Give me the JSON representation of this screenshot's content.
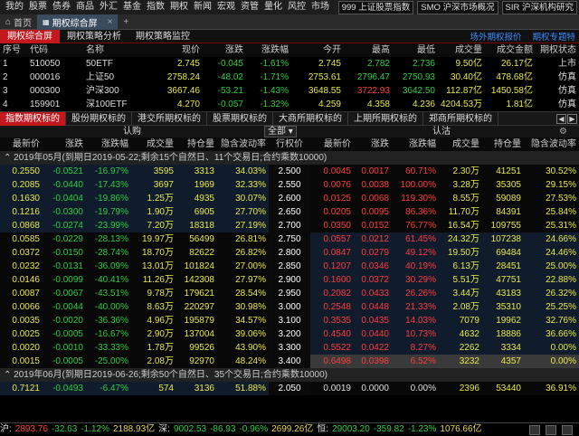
{
  "nav": {
    "items": [
      "我的",
      "股票",
      "债券",
      "商品",
      "外汇",
      "基金",
      "指数",
      "期权",
      "新闻",
      "宏观",
      "资管",
      "量化",
      "风控",
      "市场"
    ],
    "right_buttons": [
      "999 上证股票指数",
      "SMO 沪深市场概况",
      "SIR 沪深机构研究"
    ]
  },
  "tabs": {
    "home": "首页",
    "options": "期权综合屏"
  },
  "subtabs": {
    "items": [
      "期权综合屏",
      "期权策略分析",
      "期权策略监控"
    ],
    "right_links": [
      "场外期权报价",
      "期权专题特"
    ]
  },
  "index_table": {
    "headers": [
      "序号",
      "代码",
      "名称",
      "现价",
      "涨跌",
      "涨跌幅",
      "今开",
      "最高",
      "最低",
      "成交量",
      "成交金额",
      "期权状态"
    ],
    "rows": [
      [
        "1",
        "510050",
        "50ETF",
        "2.745",
        "-0.045",
        "-1.61%",
        "2.745",
        "2.782",
        "2.736",
        "9.50亿",
        "26.17亿",
        "上市"
      ],
      [
        "2",
        "000016",
        "上证50",
        "2758.24",
        "-48.02",
        "-1.71%",
        "2753.61",
        "2796.47",
        "2750.93",
        "30.40亿",
        "478.68亿",
        "仿真"
      ],
      [
        "3",
        "000300",
        "沪深300",
        "3667.46",
        "-53.21",
        "-1.43%",
        "3648.55",
        "3722.93",
        "3642.50",
        "112.87亿",
        "1450.58亿",
        "仿真"
      ],
      [
        "4",
        "159901",
        "深100ETF",
        "4.270",
        "-0.057",
        "-1.32%",
        "4.259",
        "4.358",
        "4.236",
        "4204.53万",
        "1.81亿",
        "仿真"
      ]
    ]
  },
  "categories": [
    "指数期权标的",
    "股份期权标的",
    "港交所期权标的",
    "股票期权标的",
    "大商所期权标的",
    "上期所期权标的",
    "郑商所期权标的"
  ],
  "chain": {
    "call_label": "认购",
    "put_label": "认沽",
    "all_label": "全部",
    "headers_call": [
      "最新价",
      "涨跌",
      "涨跌幅",
      "成交量",
      "持仓量",
      "隐含波动率"
    ],
    "strike_header": "行权价",
    "headers_put": [
      "最新价",
      "涨跌",
      "涨跌幅",
      "成交量",
      "持仓量",
      "隐含波动率"
    ],
    "group1": "2019年05月(到期日2019-05-22;剩余15个自然日、11个交易日;合约乘数10000)",
    "rows": [
      {
        "c": [
          "0.2550",
          "-0.0521",
          "-16.97%",
          "3595",
          "3313",
          "34.03%"
        ],
        "k": "2.500",
        "p": [
          "0.0045",
          "0.0017",
          "60.71%",
          "2.30万",
          "41251",
          "30.52%"
        ]
      },
      {
        "c": [
          "0.2085",
          "-0.0440",
          "-17.43%",
          "3697",
          "1969",
          "32.33%"
        ],
        "k": "2.550",
        "p": [
          "0.0076",
          "0.0038",
          "100.00%",
          "3.28万",
          "35305",
          "29.15%"
        ]
      },
      {
        "c": [
          "0.1630",
          "-0.0404",
          "-19.86%",
          "1.25万",
          "4935",
          "30.07%"
        ],
        "k": "2.600",
        "p": [
          "0.0125",
          "0.0068",
          "119.30%",
          "8.55万",
          "59089",
          "27.53%"
        ]
      },
      {
        "c": [
          "0.1216",
          "-0.0300",
          "-19.79%",
          "1.90万",
          "6905",
          "27.70%"
        ],
        "k": "2.650",
        "p": [
          "0.0205",
          "0.0095",
          "86.36%",
          "11.70万",
          "84391",
          "25.84%"
        ]
      },
      {
        "c": [
          "0.0868",
          "-0.0274",
          "-23.99%",
          "7.20万",
          "18318",
          "27.19%"
        ],
        "k": "2.700",
        "p": [
          "0.0350",
          "0.0152",
          "76.77%",
          "16.54万",
          "109755",
          "25.31%"
        ]
      },
      {
        "c": [
          "0.0585",
          "-0.0229",
          "-28.13%",
          "19.97万",
          "56499",
          "26.81%"
        ],
        "k": "2.750",
        "p": [
          "0.0557",
          "0.0212",
          "61.45%",
          "24.32万",
          "107238",
          "24.66%"
        ]
      },
      {
        "c": [
          "0.0372",
          "-0.0150",
          "-28.74%",
          "18.70万",
          "82622",
          "26.82%"
        ],
        "k": "2.800",
        "p": [
          "0.0847",
          "0.0279",
          "49.12%",
          "19.50万",
          "69484",
          "24.46%"
        ]
      },
      {
        "c": [
          "0.0232",
          "-0.0131",
          "-36.09%",
          "13.01万",
          "101824",
          "27.00%"
        ],
        "k": "2.850",
        "p": [
          "0.1207",
          "0.0346",
          "40.19%",
          "6.13万",
          "28451",
          "25.00%"
        ]
      },
      {
        "c": [
          "0.0146",
          "-0.0099",
          "-40.41%",
          "11.26万",
          "142308",
          "27.97%"
        ],
        "k": "2.900",
        "p": [
          "0.1600",
          "0.0372",
          "30.29%",
          "5.51万",
          "47751",
          "22.88%"
        ]
      },
      {
        "c": [
          "0.0087",
          "-0.0067",
          "-43.51%",
          "9.78万",
          "179621",
          "28.54%"
        ],
        "k": "2.950",
        "p": [
          "0.2082",
          "0.0433",
          "26.26%",
          "3.44万",
          "43183",
          "26.32%"
        ]
      },
      {
        "c": [
          "0.0066",
          "-0.0044",
          "-40.00%",
          "8.63万",
          "220297",
          "30.98%"
        ],
        "k": "3.000",
        "p": [
          "0.2548",
          "0.0448",
          "21.33%",
          "2.08万",
          "35310",
          "25.25%"
        ]
      },
      {
        "c": [
          "0.0035",
          "-0.0020",
          "-36.36%",
          "4.96万",
          "195879",
          "34.57%"
        ],
        "k": "3.100",
        "p": [
          "0.3535",
          "0.0435",
          "14.03%",
          "7079",
          "19962",
          "32.76%"
        ]
      },
      {
        "c": [
          "0.0025",
          "-0.0005",
          "-16.67%",
          "2.90万",
          "137004",
          "39.06%"
        ],
        "k": "3.200",
        "p": [
          "0.4540",
          "0.0440",
          "10.73%",
          "4632",
          "18886",
          "36.66%"
        ]
      },
      {
        "c": [
          "0.0020",
          "-0.0010",
          "-33.33%",
          "1.78万",
          "99526",
          "43.90%"
        ],
        "k": "3.300",
        "p": [
          "0.5522",
          "0.0422",
          "8.27%",
          "2262",
          "3334",
          "0.00%"
        ]
      },
      {
        "c": [
          "0.0015",
          "-0.0005",
          "-25.00%",
          "2.08万",
          "92970",
          "48.24%"
        ],
        "k": "3.400",
        "p": [
          "0.6498",
          "0.0398",
          "6.52%",
          "3232",
          "4357",
          "0.00%"
        ]
      }
    ],
    "group2": "2019年06月(到期日2019-06-26;剩余50个自然日、35个交易日;合约乘数10000)",
    "row_next": {
      "c": [
        "0.7121",
        "-0.0493",
        "-6.47%",
        "574",
        "3136",
        "51.88%"
      ],
      "k": "2.050",
      "p": [
        "0.0019",
        "0.0000",
        "0.00%",
        "2396",
        "53440",
        "36.91%"
      ]
    }
  },
  "footer": {
    "sh_label": "沪:",
    "sh_val": "2893.76",
    "sh_chg": "-32.63",
    "sh_pct": "-1.12%",
    "sh_amt": "2188.93亿",
    "sz_label": "深:",
    "sz_val": "9002.53",
    "sz_chg": "-86.93",
    "sz_pct": "-0.96%",
    "sz_amt": "2699.26亿",
    "hk_label": "恒:",
    "hk_val": "29003.20",
    "hk_chg": "-359.82",
    "hk_pct": "-1.23%",
    "hk_amt": "1076.66亿"
  }
}
